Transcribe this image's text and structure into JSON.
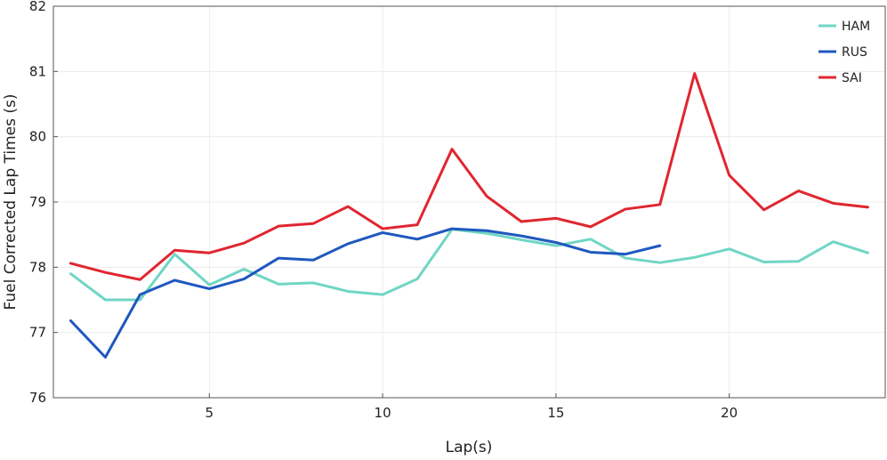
{
  "chart_data": {
    "type": "line",
    "xlabel": "Lap(s)",
    "ylabel": "Fuel Corrected Lap Times (s)",
    "xlim": [
      0.5,
      24.5
    ],
    "ylim": [
      76,
      82
    ],
    "xticks": [
      5,
      10,
      15,
      20
    ],
    "yticks": [
      76,
      77,
      78,
      79,
      80,
      81,
      82
    ],
    "grid": true,
    "legend_position": "top-right",
    "series": [
      {
        "name": "HAM",
        "color": "#6fd6c4",
        "x": [
          1,
          2,
          3,
          4,
          5,
          6,
          7,
          8,
          9,
          10,
          11,
          12,
          13,
          14,
          15,
          16,
          17,
          18,
          19,
          20,
          21,
          22,
          23,
          24
        ],
        "values": [
          77.9,
          77.5,
          77.5,
          78.2,
          77.73,
          77.97,
          77.74,
          77.76,
          77.63,
          77.58,
          77.82,
          78.58,
          78.52,
          78.42,
          78.33,
          78.43,
          78.14,
          78.07,
          78.15,
          78.28,
          78.08,
          78.09,
          78.39,
          78.22
        ]
      },
      {
        "name": "RUS",
        "color": "#1f58be",
        "x": [
          1,
          2,
          3,
          4,
          5,
          6,
          7,
          8,
          9,
          10,
          11,
          12,
          13,
          14,
          15,
          16,
          17,
          18
        ],
        "values": [
          77.18,
          76.62,
          77.58,
          77.8,
          77.67,
          77.82,
          78.14,
          78.11,
          78.36,
          78.53,
          78.43,
          78.59,
          78.56,
          78.48,
          78.38,
          78.23,
          78.2,
          78.33
        ]
      },
      {
        "name": "SAI",
        "color": "#e02630",
        "x": [
          1,
          2,
          3,
          4,
          5,
          6,
          7,
          8,
          9,
          10,
          11,
          12,
          13,
          14,
          15,
          16,
          17,
          18,
          19,
          20,
          21,
          22,
          23,
          24
        ],
        "values": [
          78.06,
          77.92,
          77.81,
          78.26,
          78.22,
          78.37,
          78.63,
          78.67,
          78.93,
          78.59,
          78.65,
          79.81,
          79.09,
          78.7,
          78.75,
          78.62,
          78.89,
          78.96,
          80.97,
          79.41,
          78.88,
          79.17,
          78.98,
          78.92
        ]
      }
    ]
  }
}
